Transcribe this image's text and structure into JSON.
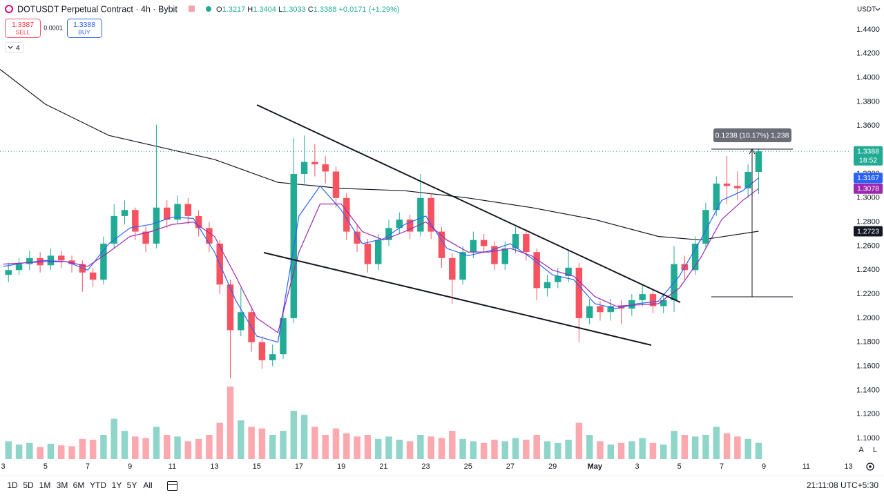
{
  "header": {
    "title": "DOTUSDT Perpetual Contract · 4h · Bybit",
    "ohlc": [
      {
        "key": "O",
        "value": "1.3217"
      },
      {
        "key": "H",
        "value": "1.3404"
      },
      {
        "key": "L",
        "value": "1.3033"
      },
      {
        "key": "C",
        "value": "1.3388"
      }
    ],
    "change": "+0.0171 (+1.29%)",
    "sell_price": "1.3387",
    "sell_label": "SELL",
    "spread": "0.0001",
    "buy_price": "1.3388",
    "buy_label": "BUY",
    "indicators_count": "4",
    "currency": "USDT"
  },
  "drawings": {
    "measure_label": "0.1238 (10.17%) 1,238"
  },
  "toolbar": {
    "ranges": [
      "1D",
      "5D",
      "1M",
      "3M",
      "6M",
      "YTD",
      "1Y",
      "5Y",
      "All"
    ],
    "clock": "21:11:08 UTC+5:30",
    "auto": "A",
    "log": "L"
  },
  "chart_data": {
    "type": "candlestick",
    "x": [
      3.25,
      3.75,
      4.25,
      4.75,
      5.25,
      5.75,
      6.25,
      6.75,
      7.25,
      7.75,
      8.25,
      8.75,
      9.25,
      9.75,
      10.25,
      10.75,
      11.25,
      11.75,
      12.25,
      12.75,
      13.25,
      13.75,
      14.25,
      14.75,
      15.25,
      15.75,
      16.25,
      16.75,
      17.25,
      17.75,
      18.25,
      18.75,
      19.25,
      19.75,
      20.25,
      20.75,
      21.25,
      21.75,
      22.25,
      22.75,
      23.25,
      23.75,
      24.25,
      24.75,
      25.25,
      25.75,
      26.25,
      26.75,
      27.25,
      27.75,
      28.25,
      28.75,
      29.25,
      29.75,
      30.25,
      30.75,
      31.25,
      31.75,
      32.25,
      32.75,
      33.25,
      33.75,
      34.25,
      34.75,
      35.25,
      35.75,
      36.25,
      36.75,
      37.25,
      37.75,
      38.25,
      38.75
    ],
    "open": [
      1.236,
      1.24,
      1.245,
      1.25,
      1.244,
      1.252,
      1.248,
      1.245,
      1.238,
      1.232,
      1.262,
      1.285,
      1.29,
      1.272,
      1.262,
      1.292,
      1.282,
      1.295,
      1.285,
      1.275,
      1.262,
      1.228,
      1.19,
      1.205,
      1.18,
      1.165,
      1.17,
      1.2,
      1.32,
      1.33,
      1.328,
      1.322,
      1.3,
      1.272,
      1.262,
      1.245,
      1.265,
      1.275,
      1.282,
      1.272,
      1.3,
      1.272,
      1.25,
      1.232,
      1.255,
      1.265,
      1.26,
      1.245,
      1.258,
      1.27,
      1.255,
      1.225,
      1.23,
      1.235,
      1.242,
      1.2,
      1.21,
      1.205,
      1.21,
      1.208,
      1.215,
      1.22,
      1.21,
      1.215,
      1.245,
      1.24,
      1.262,
      1.29,
      1.312,
      1.31,
      1.308,
      1.3217
    ],
    "high": [
      1.246,
      1.25,
      1.256,
      1.255,
      1.258,
      1.256,
      1.252,
      1.248,
      1.242,
      1.268,
      1.295,
      1.298,
      1.292,
      1.276,
      1.361,
      1.298,
      1.302,
      1.3,
      1.29,
      1.28,
      1.265,
      1.232,
      1.225,
      1.21,
      1.185,
      1.178,
      1.205,
      1.35,
      1.352,
      1.345,
      1.335,
      1.326,
      1.304,
      1.278,
      1.266,
      1.27,
      1.282,
      1.288,
      1.286,
      1.32,
      1.304,
      1.276,
      1.254,
      1.26,
      1.272,
      1.27,
      1.264,
      1.264,
      1.276,
      1.274,
      1.258,
      1.236,
      1.242,
      1.256,
      1.246,
      1.216,
      1.214,
      1.216,
      1.215,
      1.22,
      1.228,
      1.224,
      1.22,
      1.26,
      1.252,
      1.268,
      1.296,
      1.318,
      1.335,
      1.322,
      1.328,
      1.3404
    ],
    "low": [
      1.23,
      1.236,
      1.24,
      1.238,
      1.24,
      1.242,
      1.238,
      1.222,
      1.226,
      1.228,
      1.258,
      1.278,
      1.265,
      1.255,
      1.258,
      1.275,
      1.278,
      1.278,
      1.268,
      1.255,
      1.22,
      1.15,
      1.185,
      1.172,
      1.158,
      1.16,
      1.166,
      1.196,
      1.312,
      1.318,
      1.312,
      1.292,
      1.265,
      1.255,
      1.238,
      1.24,
      1.26,
      1.27,
      1.266,
      1.268,
      1.266,
      1.242,
      1.212,
      1.228,
      1.25,
      1.254,
      1.24,
      1.24,
      1.254,
      1.248,
      1.215,
      1.218,
      1.225,
      1.23,
      1.18,
      1.195,
      1.198,
      1.198,
      1.195,
      1.202,
      1.21,
      1.204,
      1.204,
      1.205,
      1.232,
      1.236,
      1.258,
      1.285,
      1.295,
      1.298,
      1.3,
      1.3033
    ],
    "close": [
      1.24,
      1.245,
      1.25,
      1.244,
      1.252,
      1.248,
      1.245,
      1.238,
      1.232,
      1.262,
      1.285,
      1.29,
      1.272,
      1.262,
      1.292,
      1.282,
      1.295,
      1.285,
      1.275,
      1.262,
      1.228,
      1.19,
      1.205,
      1.18,
      1.165,
      1.17,
      1.2,
      1.32,
      1.33,
      1.328,
      1.322,
      1.3,
      1.272,
      1.262,
      1.245,
      1.265,
      1.275,
      1.282,
      1.272,
      1.3,
      1.272,
      1.25,
      1.232,
      1.255,
      1.265,
      1.26,
      1.245,
      1.258,
      1.27,
      1.255,
      1.225,
      1.23,
      1.235,
      1.242,
      1.2,
      1.21,
      1.205,
      1.21,
      1.208,
      1.215,
      1.22,
      1.21,
      1.215,
      1.245,
      1.24,
      1.262,
      1.29,
      1.312,
      1.31,
      1.308,
      1.3217,
      1.3388
    ],
    "volume": [
      22,
      18,
      20,
      15,
      19,
      17,
      16,
      25,
      24,
      30,
      50,
      35,
      28,
      26,
      40,
      30,
      28,
      22,
      25,
      30,
      45,
      90,
      48,
      40,
      38,
      30,
      35,
      60,
      55,
      40,
      30,
      38,
      32,
      28,
      30,
      25,
      28,
      24,
      22,
      30,
      28,
      26,
      35,
      25,
      22,
      20,
      24,
      22,
      26,
      24,
      30,
      22,
      20,
      24,
      45,
      30,
      22,
      18,
      20,
      22,
      26,
      20,
      18,
      35,
      30,
      28,
      30,
      40,
      32,
      28,
      25,
      20
    ],
    "up_color": "#22ab94",
    "down_color": "#f7525f",
    "countdown": "18:52",
    "lines": [
      {
        "color": "#131722",
        "x": [
          2.85,
          5,
          8,
          10,
          13,
          16,
          19,
          22,
          25,
          28,
          31,
          34,
          36,
          38.75
        ],
        "values": [
          1.407,
          1.378,
          1.352,
          1.344,
          1.332,
          1.313,
          1.308,
          1.306,
          1.3,
          1.292,
          1.282,
          1.268,
          1.265,
          1.2723
        ]
      },
      {
        "color": "#2962ff",
        "x": [
          3,
          4,
          5,
          6,
          7,
          8,
          9,
          10,
          11,
          12,
          13,
          14,
          15,
          16,
          17,
          18,
          19,
          20,
          21,
          22,
          23,
          24,
          25,
          26,
          27,
          28,
          29,
          30,
          31,
          32,
          33,
          34,
          35,
          36,
          37,
          38,
          38.75
        ],
        "values": [
          1.243,
          1.246,
          1.248,
          1.247,
          1.24,
          1.262,
          1.275,
          1.278,
          1.284,
          1.283,
          1.255,
          1.215,
          1.185,
          1.18,
          1.285,
          1.31,
          1.29,
          1.262,
          1.266,
          1.278,
          1.285,
          1.258,
          1.252,
          1.256,
          1.262,
          1.25,
          1.236,
          1.232,
          1.212,
          1.208,
          1.212,
          1.214,
          1.235,
          1.265,
          1.298,
          1.306,
          1.3167
        ]
      },
      {
        "color": "#9c27b0",
        "x": [
          3,
          4,
          5,
          6,
          7,
          8,
          9,
          10,
          11,
          12,
          13,
          14,
          15,
          16,
          17,
          18,
          19,
          20,
          21,
          22,
          23,
          24,
          25,
          26,
          27,
          28,
          29,
          30,
          31,
          32,
          33,
          34,
          35,
          36,
          37,
          38,
          38.75
        ],
        "values": [
          1.245,
          1.246,
          1.247,
          1.247,
          1.243,
          1.255,
          1.268,
          1.272,
          1.278,
          1.28,
          1.268,
          1.235,
          1.2,
          1.188,
          1.255,
          1.295,
          1.295,
          1.272,
          1.265,
          1.272,
          1.28,
          1.265,
          1.255,
          1.255,
          1.258,
          1.252,
          1.24,
          1.235,
          1.218,
          1.21,
          1.211,
          1.212,
          1.225,
          1.25,
          1.282,
          1.298,
          1.3078
        ]
      }
    ],
    "xlim": [
      2.85,
      43.05
    ],
    "ylim": [
      1.0828,
      1.4647
    ],
    "xticks": [
      3,
      5,
      7,
      9,
      11,
      13,
      15,
      17,
      19,
      21,
      23,
      25,
      27,
      29,
      {
        "value": 31,
        "label": "May"
      },
      {
        "value": 33,
        "label": "3"
      },
      {
        "value": 35,
        "label": "5"
      },
      {
        "value": 37,
        "label": "7"
      },
      {
        "value": 39,
        "label": "9"
      },
      {
        "value": 41,
        "label": "11"
      },
      {
        "value": 43,
        "label": "13"
      }
    ],
    "yticks": [
      {
        "value": 1.1,
        "label": "1.1000"
      },
      {
        "value": 1.12,
        "label": "1.1200"
      },
      {
        "value": 1.14,
        "label": "1.1400"
      },
      {
        "value": 1.16,
        "label": "1.1600"
      },
      {
        "value": 1.18,
        "label": "1.1800"
      },
      {
        "value": 1.2,
        "label": "1.2000"
      },
      {
        "value": 1.22,
        "label": "1.2200"
      },
      {
        "value": 1.24,
        "label": "1.2400"
      },
      {
        "value": 1.26,
        "label": "1.2600"
      },
      {
        "value": 1.28,
        "label": "1.2800"
      },
      {
        "value": 1.3,
        "label": "1.3000"
      },
      {
        "value": 1.32,
        "label": "1.3200"
      },
      {
        "value": 1.34,
        "label": "1.3400"
      },
      {
        "value": 1.36,
        "label": "1.3600"
      },
      {
        "value": 1.38,
        "label": "1.3800"
      },
      {
        "value": 1.4,
        "label": "1.4000"
      },
      {
        "value": 1.42,
        "label": "1.4200"
      },
      {
        "value": 1.44,
        "label": "1.4400"
      }
    ],
    "grid": false
  }
}
